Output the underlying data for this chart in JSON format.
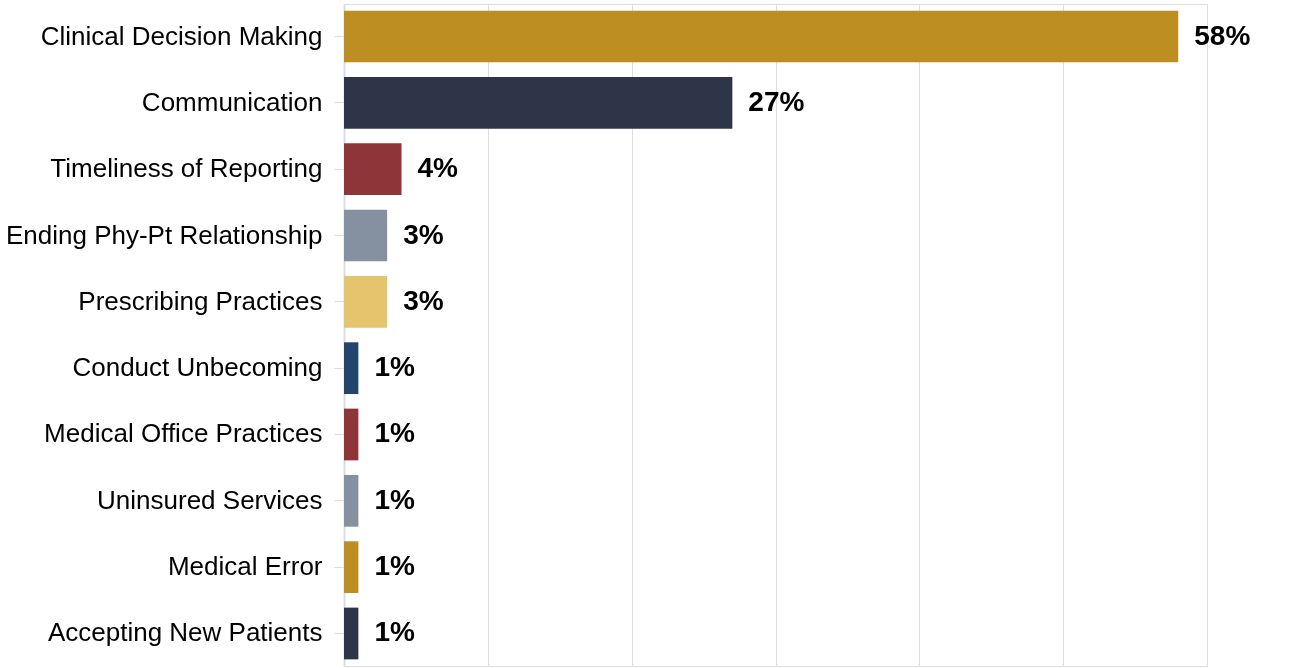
{
  "chart_data": {
    "type": "bar",
    "orientation": "horizontal",
    "categories": [
      "Clinical Decision Making",
      "Communication",
      "Timeliness of Reporting",
      "Ending Phy-Pt Relationship",
      "Prescribing Practices",
      "Conduct Unbecoming",
      "Medical Office Practices",
      "Uninsured Services",
      "Medical Error",
      "Accepting New Patients"
    ],
    "values": [
      58,
      27,
      4,
      3,
      3,
      1,
      1,
      1,
      1,
      1
    ],
    "colors": [
      "#bd8f22",
      "#2f3549",
      "#8e353a",
      "#8591a1",
      "#e6c36d",
      "#23446b",
      "#8e353a",
      "#8591a1",
      "#bd8f22",
      "#2f3549"
    ],
    "value_labels": [
      "58%",
      "27%",
      "4%",
      "3%",
      "3%",
      "1%",
      "1%",
      "1%",
      "1%",
      "1%"
    ],
    "xlim": [
      0,
      60
    ],
    "xticks": [
      {
        "value": 0,
        "label": null
      },
      {
        "value": 10,
        "label": null
      },
      {
        "value": 20,
        "label": null
      },
      {
        "value": 30,
        "label": null
      },
      {
        "value": 40,
        "label": null
      },
      {
        "value": 50,
        "label": null
      },
      {
        "value": 60,
        "label": null
      }
    ],
    "tick_labels": "y",
    "grid": "x"
  }
}
